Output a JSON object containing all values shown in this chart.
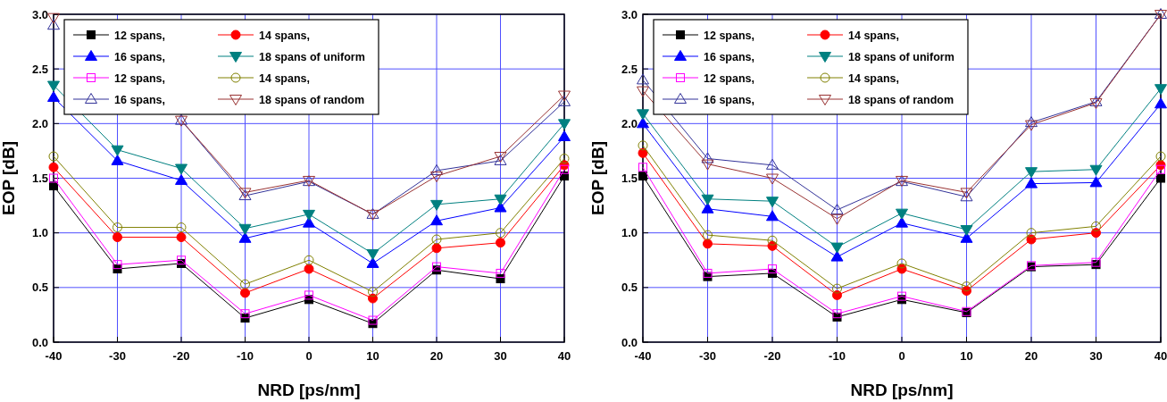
{
  "chart_data": [
    {
      "type": "line",
      "xlabel": "NRD [ps/nm]",
      "ylabel": "EOP [dB]",
      "x": [
        -40,
        -30,
        -20,
        -10,
        0,
        10,
        20,
        30,
        40
      ],
      "xlim": [
        -40,
        40
      ],
      "xticks": [
        -40,
        -30,
        -20,
        -10,
        0,
        10,
        20,
        30,
        40
      ],
      "ylim": [
        0,
        3
      ],
      "yticks": [
        {
          "value": 0,
          "label": "0.0"
        },
        0.5,
        {
          "value": 1,
          "label": "1.0"
        },
        1.5,
        {
          "value": 2,
          "label": "2.0"
        },
        2.5,
        {
          "value": 3,
          "label": "3.0"
        }
      ],
      "grid": true,
      "legend": "top left",
      "series": [
        {
          "name": "12 spans,",
          "color": "#000000",
          "marker": "square",
          "values": [
            1.43,
            0.67,
            0.72,
            0.22,
            0.39,
            0.17,
            0.66,
            0.58,
            1.52
          ]
        },
        {
          "name": "14 spans,",
          "color": "#ff0000",
          "marker": "circle",
          "values": [
            1.6,
            0.96,
            0.96,
            0.45,
            0.67,
            0.4,
            0.86,
            0.91,
            1.62
          ]
        },
        {
          "name": "16 spans,",
          "color": "#0000ff",
          "marker": "triangle",
          "values": [
            2.24,
            1.66,
            1.48,
            0.95,
            1.09,
            0.72,
            1.11,
            1.23,
            1.88
          ]
        },
        {
          "name": "18 spans of uniform",
          "color": "#008080",
          "marker": "triangle-down",
          "values": [
            2.35,
            1.76,
            1.59,
            1.04,
            1.17,
            0.81,
            1.26,
            1.31,
            2.0
          ]
        },
        {
          "name": "12 spans,",
          "color": "#ff00ff",
          "marker": "square-open",
          "values": [
            1.5,
            0.71,
            0.75,
            0.26,
            0.43,
            0.2,
            0.69,
            0.63,
            1.58
          ]
        },
        {
          "name": "14 spans,",
          "color": "#808000",
          "marker": "circle-open",
          "values": [
            1.7,
            1.05,
            1.05,
            0.53,
            0.75,
            0.46,
            0.94,
            1.0,
            1.68
          ]
        },
        {
          "name": "16 spans,",
          "color": "#333399",
          "marker": "triangle-open",
          "values": [
            2.9,
            null,
            2.03,
            1.34,
            1.47,
            1.17,
            1.57,
            1.66,
            2.2
          ]
        },
        {
          "name": "18 spans of random",
          "color": "#993333",
          "marker": "triangle-down-open",
          "values": [
            2.97,
            null,
            2.03,
            1.37,
            1.48,
            1.17,
            1.52,
            1.7,
            2.26
          ]
        }
      ]
    },
    {
      "type": "line",
      "xlabel": "NRD [ps/nm]",
      "ylabel": "EOP [dB]",
      "x": [
        -40,
        -30,
        -20,
        -10,
        0,
        10,
        20,
        30,
        40
      ],
      "xlim": [
        -40,
        40
      ],
      "xticks": [
        -40,
        -30,
        -20,
        -10,
        0,
        10,
        20,
        30,
        40
      ],
      "ylim": [
        0,
        3
      ],
      "yticks": [
        {
          "value": 0,
          "label": "0.0"
        },
        0.5,
        {
          "value": 1,
          "label": "1.0"
        },
        1.5,
        {
          "value": 2,
          "label": "2.0"
        },
        2.5,
        {
          "value": 3,
          "label": "3.0"
        }
      ],
      "grid": true,
      "legend": "top left",
      "series": [
        {
          "name": "12 spans,",
          "color": "#000000",
          "marker": "square",
          "values": [
            1.52,
            0.6,
            0.63,
            0.23,
            0.39,
            0.27,
            0.69,
            0.71,
            1.5
          ]
        },
        {
          "name": "14 spans,",
          "color": "#ff0000",
          "marker": "circle",
          "values": [
            1.73,
            0.9,
            0.88,
            0.43,
            0.67,
            0.47,
            0.94,
            1.0,
            1.62
          ]
        },
        {
          "name": "16 spans,",
          "color": "#0000ff",
          "marker": "triangle",
          "values": [
            2.0,
            1.22,
            1.15,
            0.78,
            1.09,
            0.95,
            1.45,
            1.46,
            2.18
          ]
        },
        {
          "name": "18 spans of uniform",
          "color": "#008080",
          "marker": "triangle-down",
          "values": [
            2.09,
            1.31,
            1.29,
            0.87,
            1.18,
            1.03,
            1.56,
            1.58,
            2.32
          ]
        },
        {
          "name": "12 spans,",
          "color": "#ff00ff",
          "marker": "square-open",
          "values": [
            1.6,
            0.63,
            0.67,
            0.26,
            0.42,
            0.28,
            0.7,
            0.73,
            1.58
          ]
        },
        {
          "name": "14 spans,",
          "color": "#808000",
          "marker": "circle-open",
          "values": [
            1.8,
            0.98,
            0.93,
            0.49,
            0.72,
            0.51,
            1.0,
            1.06,
            1.7
          ]
        },
        {
          "name": "16 spans,",
          "color": "#333399",
          "marker": "triangle-open",
          "values": [
            2.4,
            1.68,
            1.62,
            1.21,
            1.47,
            1.33,
            2.01,
            2.2,
            3.0
          ]
        },
        {
          "name": "18 spans of random",
          "color": "#993333",
          "marker": "triangle-down-open",
          "values": [
            2.3,
            1.63,
            1.5,
            1.13,
            1.48,
            1.37,
            1.99,
            2.19,
            3.0
          ]
        }
      ]
    }
  ]
}
